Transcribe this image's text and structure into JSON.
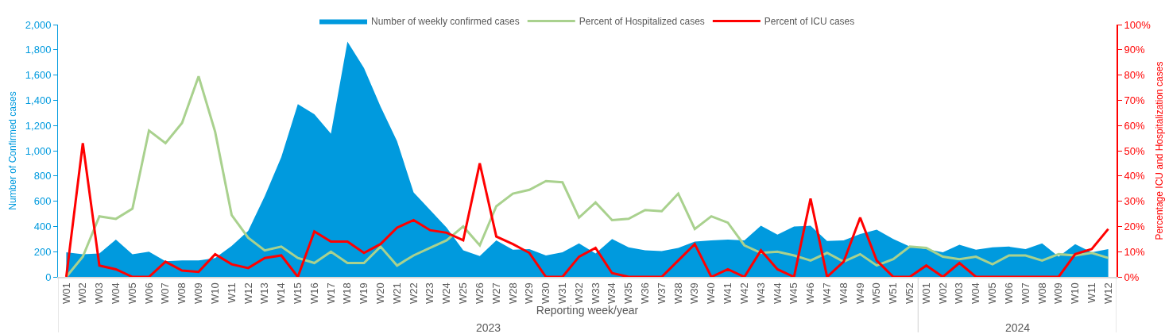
{
  "chart_data": {
    "type": "line",
    "xlabel": "Reporting week/year",
    "ylabel": "Number of Confirmed cases",
    "y2label": "Percentage ICU and Hospitalization cases",
    "categories": [
      "W01",
      "W02",
      "W03",
      "W04",
      "W05",
      "W06",
      "W07",
      "W08",
      "W09",
      "W10",
      "W11",
      "W12",
      "W13",
      "W14",
      "W15",
      "W16",
      "W17",
      "W18",
      "W19",
      "W20",
      "W21",
      "W22",
      "W23",
      "W24",
      "W25",
      "W26",
      "W27",
      "W28",
      "W29",
      "W30",
      "W31",
      "W32",
      "W33",
      "W34",
      "W35",
      "W36",
      "W37",
      "W38",
      "W39",
      "W40",
      "W41",
      "W42",
      "W43",
      "W44",
      "W45",
      "W46",
      "W47",
      "W48",
      "W49",
      "W50",
      "W51",
      "W52",
      "W01",
      "W02",
      "W03",
      "W04",
      "W05",
      "W06",
      "W07",
      "W08",
      "W09",
      "W10",
      "W11",
      "W12"
    ],
    "series": [
      {
        "name": "Number of weekly confirmed cases",
        "type": "area",
        "color": "#009ade",
        "values": [
          195,
          180,
          185,
          295,
          180,
          200,
          125,
          130,
          130,
          150,
          245,
          365,
          640,
          950,
          1370,
          1290,
          1135,
          1865,
          1655,
          1350,
          1075,
          670,
          530,
          390,
          210,
          165,
          290,
          215,
          220,
          170,
          195,
          265,
          185,
          300,
          235,
          210,
          205,
          230,
          280,
          290,
          295,
          290,
          405,
          335,
          400,
          405,
          285,
          290,
          340,
          375,
          300,
          240,
          220,
          195,
          255,
          215,
          235,
          240,
          220,
          265,
          160,
          260,
          195,
          220
        ]
      },
      {
        "name": "Percent of Hospitalized cases",
        "axis": "y2",
        "color": "#a9d18e",
        "values": [
          0,
          8,
          24,
          23,
          27,
          58,
          53,
          61,
          79.5,
          57.5,
          24.5,
          15.5,
          10.5,
          12,
          7.5,
          5.5,
          10,
          5.5,
          5.5,
          12,
          4.5,
          8.5,
          11.5,
          14.5,
          20,
          12.5,
          28,
          33,
          34.5,
          38,
          37.5,
          23.5,
          29.5,
          22.5,
          23,
          26.5,
          26,
          33,
          19,
          24,
          21.5,
          12.5,
          9.5,
          10,
          8.5,
          6.5,
          9.5,
          6,
          9,
          4.5,
          7,
          12,
          11.5,
          8,
          7,
          8,
          5,
          8.5,
          8.5,
          6.5,
          9,
          8.5,
          9.5,
          7.5
        ]
      },
      {
        "name": "Percent of ICU cases",
        "axis": "y2",
        "color": "#ff0000",
        "values": [
          0,
          53,
          4.5,
          3,
          0,
          0,
          6,
          2.5,
          2,
          9,
          5,
          3.5,
          7.5,
          8.5,
          0,
          18,
          14,
          14,
          9.5,
          13,
          19.5,
          22.5,
          18.5,
          17.5,
          14.5,
          45,
          16,
          13,
          9.5,
          0,
          0,
          8,
          11.5,
          1.5,
          0,
          0,
          0,
          6.5,
          13,
          0,
          3,
          0,
          10.5,
          3,
          0,
          31,
          0,
          6,
          23.5,
          6.5,
          0,
          0,
          4.5,
          0,
          5.5,
          0,
          0,
          0,
          0,
          0,
          0,
          9,
          11,
          19
        ]
      }
    ],
    "ylim": [
      0,
      2000
    ],
    "yticks": [
      0,
      200,
      400,
      600,
      800,
      {
        "value": 1000,
        "label": "1,000"
      },
      {
        "value": 1200,
        "label": "1,200"
      },
      {
        "value": 1400,
        "label": "1,400"
      },
      {
        "value": 1600,
        "label": "1,600"
      },
      {
        "value": 1800,
        "label": "1,800"
      },
      {
        "value": 2000,
        "label": "2,000"
      }
    ],
    "y2lim": [
      0,
      100
    ],
    "y2ticks": [
      {
        "value": 0,
        "label": "0%"
      },
      {
        "value": 10,
        "label": "10%"
      },
      {
        "value": 20,
        "label": "20%"
      },
      {
        "value": 30,
        "label": "30%"
      },
      {
        "value": 40,
        "label": "40%"
      },
      {
        "value": 50,
        "label": "50%"
      },
      {
        "value": 60,
        "label": "60%"
      },
      {
        "value": 70,
        "label": "70%"
      },
      {
        "value": 80,
        "label": "80%"
      },
      {
        "value": 90,
        "label": "90%"
      },
      {
        "value": 100,
        "label": "100%"
      }
    ],
    "annotations": [
      "2023",
      "2024"
    ],
    "grid": false,
    "legend": "top",
    "marker": "none",
    "line_style": "solid"
  }
}
